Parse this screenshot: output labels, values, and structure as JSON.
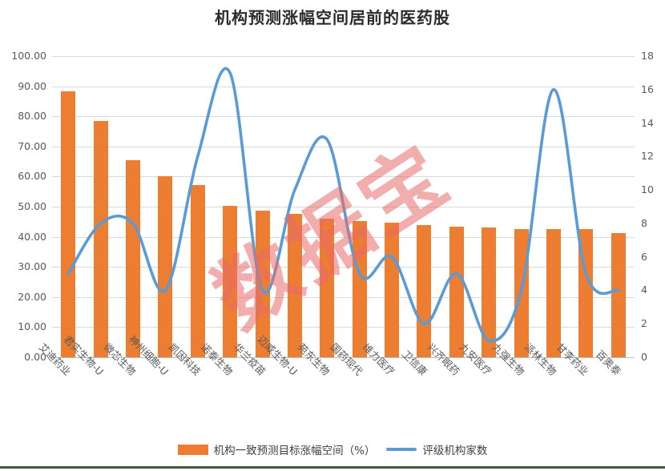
{
  "title": "机构预测涨幅空间居前的医药股",
  "watermark": "数据宝",
  "legend": {
    "bar_label": "机构一致预测目标涨幅空间（%）",
    "line_label": "评级机构家数"
  },
  "colors": {
    "bar": "#ED7D31",
    "line": "#5B9BD5",
    "grid": "#d9d9d9",
    "axis_text": "#595959",
    "title_text": "#2b2b2b",
    "watermark": "#E86A6A",
    "bottom_strip": "#3f5e3b"
  },
  "chart_data": {
    "type": "bar",
    "subtype": "bar+line-combo",
    "title": "机构预测涨幅空间居前的医药股",
    "categories": [
      "艾迪药业",
      "君实生物-U",
      "微芯生物",
      "神州细胞-U",
      "凯因科技",
      "诺泰生物",
      "华兰疫苗",
      "迈威生物-U",
      "苑东生物",
      "国药现代",
      "维力医疗",
      "卫信康",
      "兴齐眼药",
      "九安医疗",
      "九强生物",
      "派林生物",
      "甘李药业",
      "百奥泰"
    ],
    "series": [
      {
        "name": "机构一致预测目标涨幅空间（%）",
        "type": "bar",
        "axis": "left",
        "values": [
          88.2,
          78.5,
          65.3,
          60.0,
          57.2,
          50.2,
          48.6,
          47.5,
          46.1,
          45.2,
          44.6,
          43.9,
          43.4,
          43.1,
          42.6,
          42.5,
          42.5,
          41.3
        ]
      },
      {
        "name": "评级机构家数",
        "type": "line",
        "axis": "right",
        "values": [
          5,
          8,
          8,
          4,
          12,
          17,
          4,
          10,
          13,
          5,
          6,
          2,
          5,
          1,
          4,
          16,
          5,
          4
        ]
      }
    ],
    "left_axis": {
      "min": 0,
      "max": 100,
      "step": 10,
      "tick_format": "0.00"
    },
    "right_axis": {
      "min": 0,
      "max": 18,
      "step": 2,
      "tick_format": "0"
    },
    "grid": true,
    "legend_position": "bottom",
    "line_smoothed": true
  }
}
